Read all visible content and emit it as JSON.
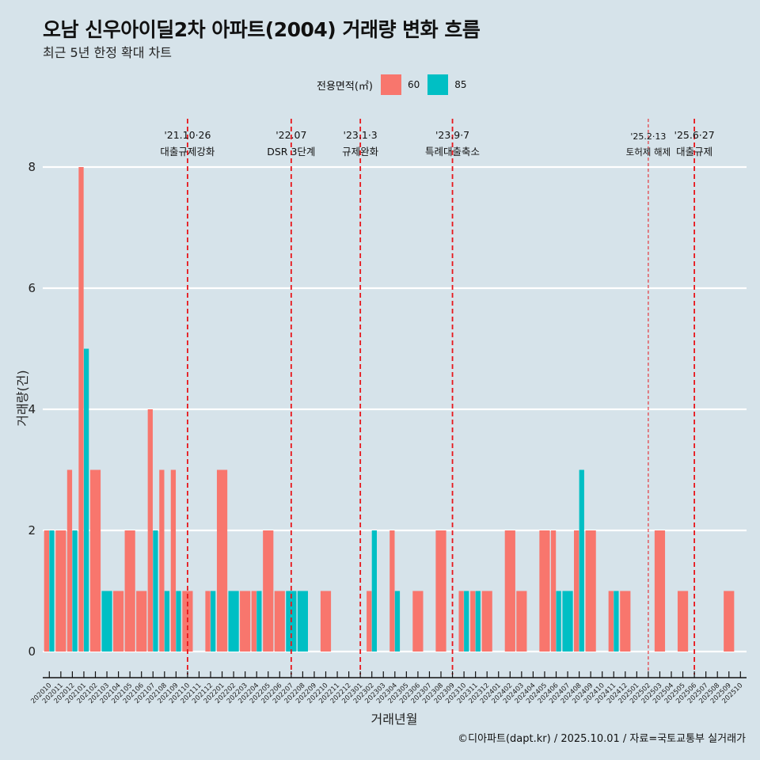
{
  "header": {
    "title": "오남 신우아이딜2차 아파트(2004) 거래량 변화 흐름",
    "subtitle": "최근 5년 한정 확대 차트"
  },
  "legend": {
    "title": "전용면적(㎡)",
    "items": [
      {
        "label": "60",
        "color": "#F8766D"
      },
      {
        "label": "85",
        "color": "#00BFC4"
      }
    ]
  },
  "caption": "©디아파트(dapt.kr) / 2025.10.01 / 자료=국토교통부 실거래가",
  "chart_data": {
    "type": "bar",
    "title": "오남 신우아이딜2차 아파트(2004) 거래량 변화 흐름",
    "subtitle": "최근 5년 한정 확대 차트",
    "xlabel": "거래년월",
    "ylabel": "거래량(건)",
    "ylim": [
      0,
      8
    ],
    "yticks": [
      0,
      2,
      4,
      6,
      8
    ],
    "grid": true,
    "legend_position": "top",
    "categories": [
      "202010",
      "202011",
      "202012",
      "202101",
      "202102",
      "202103",
      "202104",
      "202105",
      "202106",
      "202107",
      "202108",
      "202109",
      "202110",
      "202111",
      "202112",
      "202201",
      "202202",
      "202203",
      "202204",
      "202205",
      "202206",
      "202207",
      "202208",
      "202209",
      "202210",
      "202211",
      "202212",
      "202301",
      "202302",
      "202303",
      "202304",
      "202305",
      "202306",
      "202307",
      "202308",
      "202309",
      "202310",
      "202311",
      "202312",
      "202401",
      "202402",
      "202403",
      "202404",
      "202405",
      "202406",
      "202407",
      "202408",
      "202409",
      "202410",
      "202411",
      "202412",
      "202501",
      "202502",
      "202503",
      "202504",
      "202505",
      "202506",
      "202507",
      "202508",
      "202509",
      "202510"
    ],
    "series": [
      {
        "name": "60",
        "color": "#F8766D",
        "values": [
          2,
          2,
          3,
          8,
          3,
          0,
          1,
          2,
          1,
          4,
          3,
          3,
          1,
          0,
          1,
          3,
          0,
          1,
          1,
          2,
          1,
          0,
          0,
          0,
          1,
          0,
          0,
          0,
          1,
          0,
          2,
          0,
          1,
          0,
          2,
          0,
          1,
          1,
          1,
          0,
          2,
          1,
          0,
          2,
          2,
          0,
          2,
          2,
          0,
          1,
          1,
          0,
          0,
          2,
          0,
          1,
          0,
          0,
          0,
          1,
          0
        ]
      },
      {
        "name": "85",
        "color": "#00BFC4",
        "values": [
          2,
          0,
          2,
          5,
          0,
          1,
          0,
          0,
          0,
          2,
          1,
          1,
          0,
          0,
          1,
          0,
          1,
          0,
          1,
          0,
          0,
          1,
          1,
          0,
          0,
          0,
          0,
          0,
          2,
          0,
          1,
          0,
          0,
          0,
          0,
          0,
          1,
          1,
          0,
          0,
          0,
          0,
          0,
          0,
          1,
          1,
          3,
          0,
          0,
          1,
          0,
          0,
          0,
          0,
          0,
          0,
          0,
          0,
          0,
          0,
          0
        ]
      }
    ],
    "annotations": [
      {
        "month": "202110",
        "date": "'21.10·26",
        "label": "대출규제강화",
        "style": "dashed"
      },
      {
        "month": "202207",
        "date": "'22.07",
        "label": "DSR 3단계",
        "style": "dashed"
      },
      {
        "month": "202301",
        "date": "'23.1·3",
        "label": "규제완화",
        "style": "dashed"
      },
      {
        "month": "202309",
        "date": "'23.9·7",
        "label": "특례대출축소",
        "style": "dashed"
      },
      {
        "month": "202502",
        "date": "'25.2·13",
        "label": "토허제 해제",
        "style": "thin"
      },
      {
        "month": "202506",
        "date": "'25.6·27",
        "label": "대출규제",
        "style": "dashed"
      }
    ]
  }
}
